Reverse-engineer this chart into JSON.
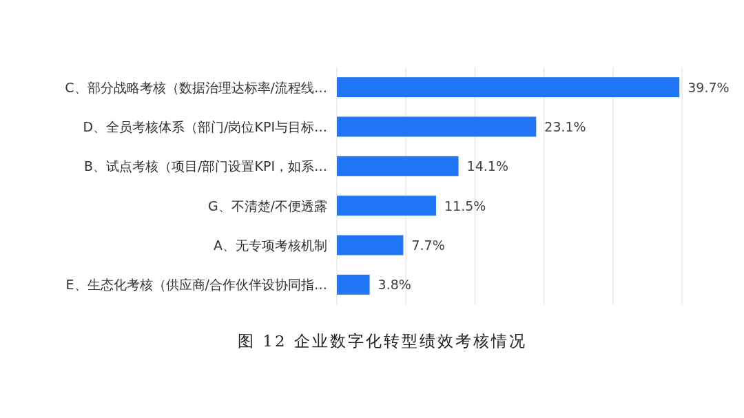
{
  "chart_data": {
    "type": "bar",
    "orientation": "horizontal",
    "title": "图 12 企业数字化转型绩效考核情况",
    "categories": [
      "C、部分战略考核（数据治理达标率/流程线…",
      "D、全员考核体系（部门/岗位KPI与目标…",
      "B、试点考核（项目/部门设置KPI，如系…",
      "G、不清楚/不便透露",
      "A、无专项考核机制",
      "E、生态化考核（供应商/合作伙伴设协同指…"
    ],
    "values": [
      39.7,
      23.1,
      14.1,
      11.5,
      7.7,
      3.8
    ],
    "value_labels": [
      "39.7%",
      "23.1%",
      "14.1%",
      "11.5%",
      "7.7%",
      "3.8%"
    ],
    "color": "#2176f5",
    "xlim": [
      0,
      40
    ],
    "xticks": [
      {
        "value": 0,
        "label": null
      },
      {
        "value": 8,
        "label": null
      },
      {
        "value": 16,
        "label": null
      },
      {
        "value": 24,
        "label": null
      },
      {
        "value": 32,
        "label": null
      },
      {
        "value": 40,
        "label": null
      }
    ],
    "grid": "x"
  }
}
